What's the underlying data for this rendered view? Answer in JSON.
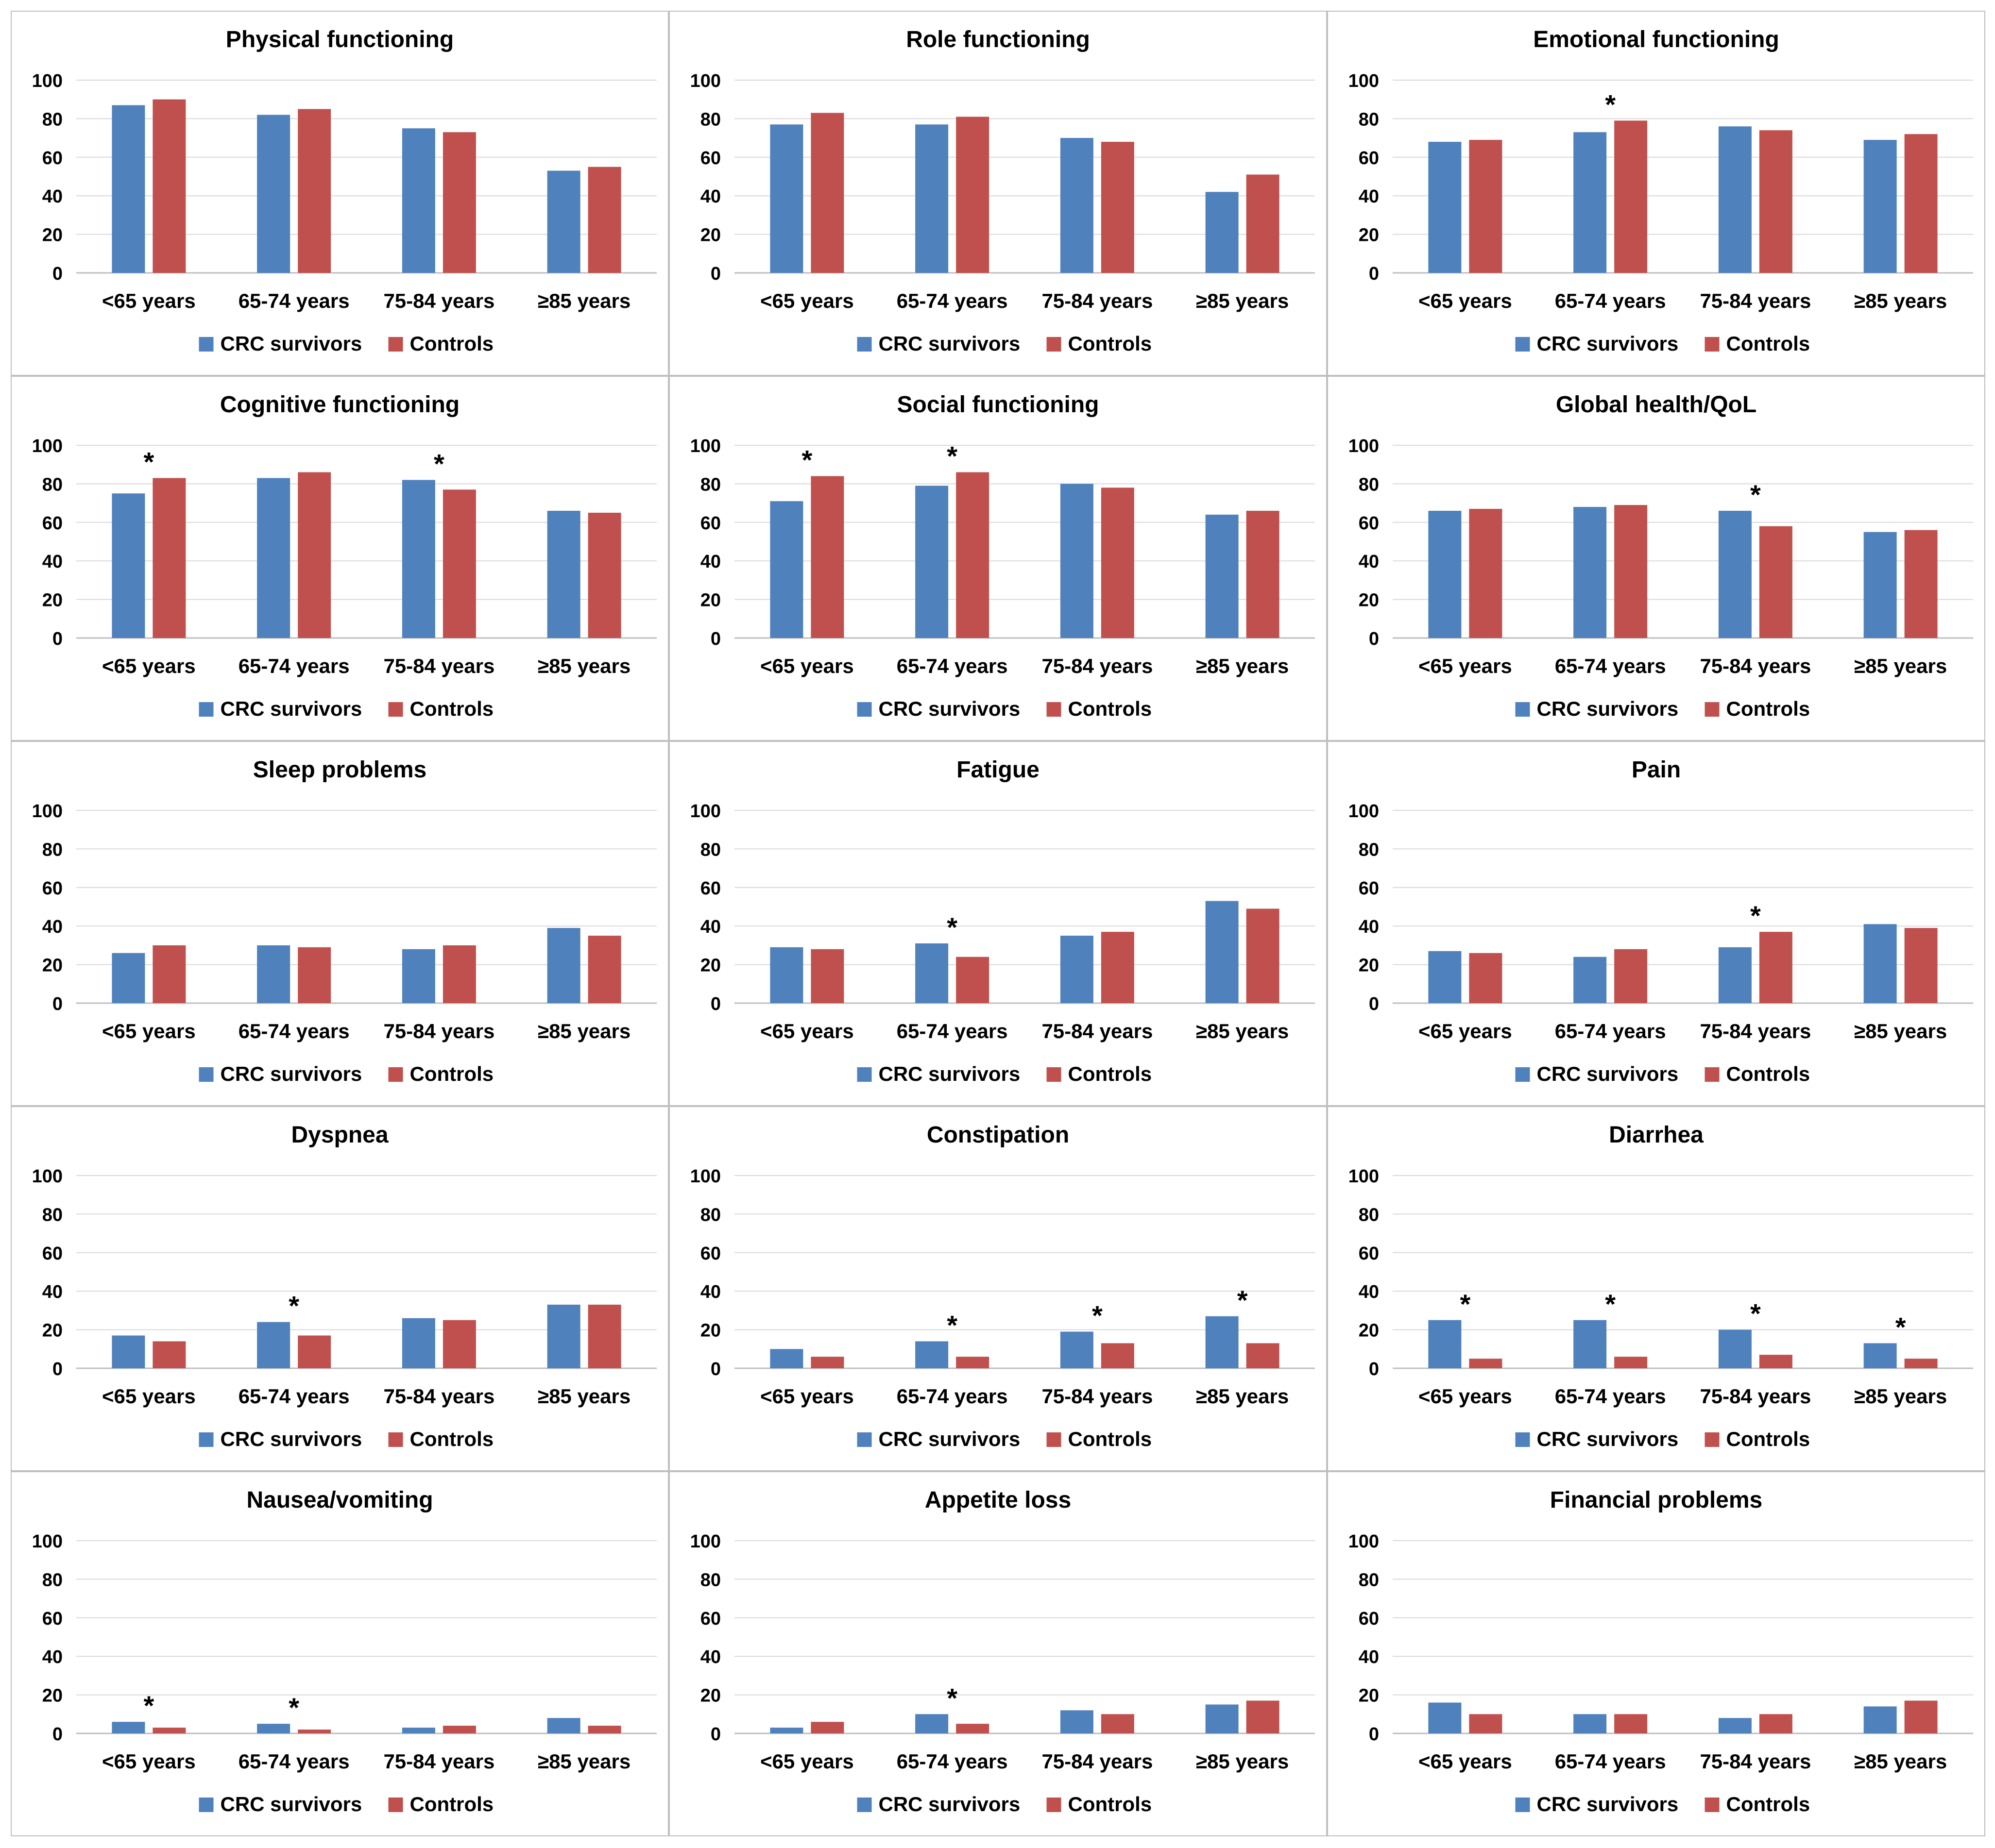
{
  "colors": {
    "survivors": "#4F81BD",
    "controls": "#C0504D",
    "grid": "#D9D9D9",
    "border": "#BFBFBF",
    "text": "#000000"
  },
  "legend": {
    "survivors": "CRC survivors",
    "controls": "Controls"
  },
  "significance_marker": "*",
  "chart_data": [
    {
      "type": "bar",
      "title": "Physical functioning",
      "categories": [
        "<65 years",
        "65-74 years",
        "75-84 years",
        "≥85 years"
      ],
      "yticks": [
        0,
        20,
        40,
        60,
        80,
        100
      ],
      "ylim": [
        0,
        100
      ],
      "series": [
        {
          "name": "CRC survivors",
          "values": [
            87,
            82,
            75,
            53
          ]
        },
        {
          "name": "Controls",
          "values": [
            90,
            85,
            73,
            55
          ]
        }
      ],
      "significant": [
        false,
        false,
        false,
        false
      ]
    },
    {
      "type": "bar",
      "title": "Role functioning",
      "categories": [
        "<65 years",
        "65-74 years",
        "75-84 years",
        "≥85 years"
      ],
      "yticks": [
        0,
        20,
        40,
        60,
        80,
        100
      ],
      "ylim": [
        0,
        100
      ],
      "series": [
        {
          "name": "CRC survivors",
          "values": [
            77,
            77,
            70,
            42
          ]
        },
        {
          "name": "Controls",
          "values": [
            83,
            81,
            68,
            51
          ]
        }
      ],
      "significant": [
        false,
        false,
        false,
        false
      ]
    },
    {
      "type": "bar",
      "title": "Emotional functioning",
      "categories": [
        "<65 years",
        "65-74 years",
        "75-84 years",
        "≥85 years"
      ],
      "yticks": [
        0,
        20,
        40,
        60,
        80,
        100
      ],
      "ylim": [
        0,
        100
      ],
      "series": [
        {
          "name": "CRC survivors",
          "values": [
            68,
            73,
            76,
            69
          ]
        },
        {
          "name": "Controls",
          "values": [
            69,
            79,
            74,
            72
          ]
        }
      ],
      "significant": [
        false,
        true,
        false,
        false
      ]
    },
    {
      "type": "bar",
      "title": "Cognitive functioning",
      "categories": [
        "<65 years",
        "65-74 years",
        "75-84 years",
        "≥85 years"
      ],
      "yticks": [
        0,
        20,
        40,
        60,
        80,
        100
      ],
      "ylim": [
        0,
        100
      ],
      "series": [
        {
          "name": "CRC survivors",
          "values": [
            75,
            83,
            82,
            66
          ]
        },
        {
          "name": "Controls",
          "values": [
            83,
            86,
            77,
            65
          ]
        }
      ],
      "significant": [
        true,
        false,
        true,
        false
      ]
    },
    {
      "type": "bar",
      "title": "Social functioning",
      "categories": [
        "<65 years",
        "65-74 years",
        "75-84 years",
        "≥85 years"
      ],
      "yticks": [
        0,
        20,
        40,
        60,
        80,
        100
      ],
      "ylim": [
        0,
        100
      ],
      "series": [
        {
          "name": "CRC survivors",
          "values": [
            71,
            79,
            80,
            64
          ]
        },
        {
          "name": "Controls",
          "values": [
            84,
            86,
            78,
            66
          ]
        }
      ],
      "significant": [
        true,
        true,
        false,
        false
      ]
    },
    {
      "type": "bar",
      "title": "Global health/QoL",
      "categories": [
        "<65 years",
        "65-74 years",
        "75-84 years",
        "≥85 years"
      ],
      "yticks": [
        0,
        20,
        40,
        60,
        80,
        100
      ],
      "ylim": [
        0,
        100
      ],
      "series": [
        {
          "name": "CRC survivors",
          "values": [
            66,
            68,
            66,
            55
          ]
        },
        {
          "name": "Controls",
          "values": [
            67,
            69,
            58,
            56
          ]
        }
      ],
      "significant": [
        false,
        false,
        true,
        false
      ]
    },
    {
      "type": "bar",
      "title": "Sleep problems",
      "categories": [
        "<65 years",
        "65-74 years",
        "75-84 years",
        "≥85 years"
      ],
      "yticks": [
        0,
        20,
        40,
        60,
        80,
        100
      ],
      "ylim": [
        0,
        100
      ],
      "series": [
        {
          "name": "CRC survivors",
          "values": [
            26,
            30,
            28,
            39
          ]
        },
        {
          "name": "Controls",
          "values": [
            30,
            29,
            30,
            35
          ]
        }
      ],
      "significant": [
        false,
        false,
        false,
        false
      ]
    },
    {
      "type": "bar",
      "title": "Fatigue",
      "categories": [
        "<65 years",
        "65-74 years",
        "75-84 years",
        "≥85 years"
      ],
      "yticks": [
        0,
        20,
        40,
        60,
        80,
        100
      ],
      "ylim": [
        0,
        100
      ],
      "series": [
        {
          "name": "CRC survivors",
          "values": [
            29,
            31,
            35,
            53
          ]
        },
        {
          "name": "Controls",
          "values": [
            28,
            24,
            37,
            49
          ]
        }
      ],
      "significant": [
        false,
        true,
        false,
        false
      ]
    },
    {
      "type": "bar",
      "title": "Pain",
      "categories": [
        "<65 years",
        "65-74 years",
        "75-84 years",
        "≥85 years"
      ],
      "yticks": [
        0,
        20,
        40,
        60,
        80,
        100
      ],
      "ylim": [
        0,
        100
      ],
      "series": [
        {
          "name": "CRC survivors",
          "values": [
            27,
            24,
            29,
            41
          ]
        },
        {
          "name": "Controls",
          "values": [
            26,
            28,
            37,
            39
          ]
        }
      ],
      "significant": [
        false,
        false,
        true,
        false
      ]
    },
    {
      "type": "bar",
      "title": "Dyspnea",
      "categories": [
        "<65 years",
        "65-74 years",
        "75-84 years",
        "≥85 years"
      ],
      "yticks": [
        0,
        20,
        40,
        60,
        80,
        100
      ],
      "ylim": [
        0,
        100
      ],
      "series": [
        {
          "name": "CRC survivors",
          "values": [
            17,
            24,
            26,
            33
          ]
        },
        {
          "name": "Controls",
          "values": [
            14,
            17,
            25,
            33
          ]
        }
      ],
      "significant": [
        false,
        true,
        false,
        false
      ]
    },
    {
      "type": "bar",
      "title": "Constipation",
      "categories": [
        "<65 years",
        "65-74 years",
        "75-84 years",
        "≥85 years"
      ],
      "yticks": [
        0,
        20,
        40,
        60,
        80,
        100
      ],
      "ylim": [
        0,
        100
      ],
      "series": [
        {
          "name": "CRC survivors",
          "values": [
            10,
            14,
            19,
            27
          ]
        },
        {
          "name": "Controls",
          "values": [
            6,
            6,
            13,
            13
          ]
        }
      ],
      "significant": [
        false,
        true,
        true,
        true
      ]
    },
    {
      "type": "bar",
      "title": "Diarrhea",
      "categories": [
        "<65 years",
        "65-74 years",
        "75-84 years",
        "≥85 years"
      ],
      "yticks": [
        0,
        20,
        40,
        60,
        80,
        100
      ],
      "ylim": [
        0,
        100
      ],
      "series": [
        {
          "name": "CRC survivors",
          "values": [
            25,
            25,
            20,
            13
          ]
        },
        {
          "name": "Controls",
          "values": [
            5,
            6,
            7,
            5
          ]
        }
      ],
      "significant": [
        true,
        true,
        true,
        true
      ]
    },
    {
      "type": "bar",
      "title": "Nausea/vomiting",
      "categories": [
        "<65 years",
        "65-74 years",
        "75-84 years",
        "≥85 years"
      ],
      "yticks": [
        0,
        20,
        40,
        60,
        80,
        100
      ],
      "ylim": [
        0,
        100
      ],
      "series": [
        {
          "name": "CRC survivors",
          "values": [
            6,
            5,
            3,
            8
          ]
        },
        {
          "name": "Controls",
          "values": [
            3,
            2,
            4,
            4
          ]
        }
      ],
      "significant": [
        true,
        true,
        false,
        false
      ]
    },
    {
      "type": "bar",
      "title": "Appetite loss",
      "categories": [
        "<65 years",
        "65-74 years",
        "75-84 years",
        "≥85 years"
      ],
      "yticks": [
        0,
        20,
        40,
        60,
        80,
        100
      ],
      "ylim": [
        0,
        100
      ],
      "series": [
        {
          "name": "CRC survivors",
          "values": [
            3,
            10,
            12,
            15
          ]
        },
        {
          "name": "Controls",
          "values": [
            6,
            5,
            10,
            17
          ]
        }
      ],
      "significant": [
        false,
        true,
        false,
        false
      ]
    },
    {
      "type": "bar",
      "title": "Financial problems",
      "categories": [
        "<65 years",
        "65-74 years",
        "75-84 years",
        "≥85 years"
      ],
      "yticks": [
        0,
        20,
        40,
        60,
        80,
        100
      ],
      "ylim": [
        0,
        100
      ],
      "series": [
        {
          "name": "CRC survivors",
          "values": [
            16,
            10,
            8,
            14
          ]
        },
        {
          "name": "Controls",
          "values": [
            10,
            10,
            10,
            17
          ]
        }
      ],
      "significant": [
        false,
        false,
        false,
        false
      ]
    }
  ]
}
